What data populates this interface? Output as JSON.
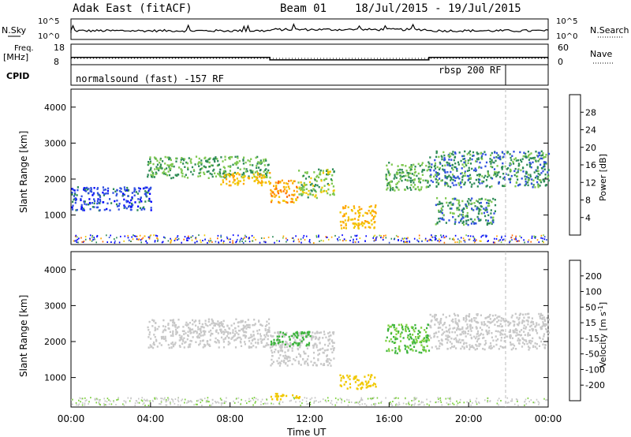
{
  "header": {
    "station": "Adak East (fitACF)",
    "beam": "Beam 01",
    "dates": "18/Jul/2015 - 19/Jul/2015"
  },
  "noise_panel": {
    "left_label": "N.Sky",
    "right_label": "N.Search",
    "y_ticks_left": [
      "10^5",
      "10^0"
    ],
    "y_ticks_right": [
      "10^5",
      "10^0"
    ]
  },
  "freq_panel": {
    "left_label_top": "Freq.",
    "left_label_unit": "[MHz]",
    "right_label": "Nave",
    "y_ticks_left": [
      "18",
      "8"
    ],
    "y_ticks_right": [
      "60",
      "0"
    ],
    "freq_steps": [
      {
        "t_start": 0,
        "t_end": 10,
        "freq": 12.0
      },
      {
        "t_start": 10,
        "t_end": 18,
        "freq": 10.3
      },
      {
        "t_start": 18,
        "t_end": 24,
        "freq": 12.0
      }
    ]
  },
  "cpid_panel": {
    "label": "CPID",
    "modes": [
      {
        "t_start": 0,
        "t_end": 21.85,
        "text": "normalsound (fast) -157 RF"
      },
      {
        "t_start": 21.85,
        "t_end": 24,
        "text": "rbsp 200 RF"
      }
    ]
  },
  "chart_data": [
    {
      "type": "heatmap",
      "title": "",
      "xlabel": "",
      "ylabel": "Slant Range [km]",
      "xlim": [
        0,
        24
      ],
      "ylim": [
        180,
        4500
      ],
      "y_ticks": [
        1000,
        2000,
        3000,
        4000
      ],
      "colorbar": {
        "label": "Power [dB]",
        "ticks": [
          "4",
          "8",
          "12",
          "16",
          "20",
          "24",
          "28"
        ],
        "colors": [
          "#0000ff",
          "#3050e0",
          "#2e8b57",
          "#7ec850",
          "#f0c800",
          "#ffa500",
          "#ff6a00",
          "#ff0000"
        ]
      },
      "regions": [
        {
          "t_start": 3.8,
          "t_end": 10.0,
          "r_min": 2050,
          "r_max": 2650,
          "value": 12
        },
        {
          "t_start": 7.5,
          "t_end": 10.0,
          "r_min": 1850,
          "r_max": 2200,
          "value": 20
        },
        {
          "t_start": 10.0,
          "t_end": 11.4,
          "r_min": 1350,
          "r_max": 2000,
          "value": 22
        },
        {
          "t_start": 11.4,
          "t_end": 13.2,
          "r_min": 1500,
          "r_max": 2300,
          "value": 14
        },
        {
          "t_start": 13.5,
          "t_end": 15.3,
          "r_min": 650,
          "r_max": 1300,
          "value": 20
        },
        {
          "t_start": 15.8,
          "t_end": 18.0,
          "r_min": 1700,
          "r_max": 2500,
          "value": 12
        },
        {
          "t_start": 18.0,
          "t_end": 24.0,
          "r_min": 1800,
          "r_max": 2800,
          "value": 10
        },
        {
          "t_start": 18.3,
          "t_end": 21.3,
          "r_min": 750,
          "r_max": 1500,
          "value": 10
        },
        {
          "t_start": 0.0,
          "t_end": 4.0,
          "r_min": 1150,
          "r_max": 1800,
          "value": 6
        }
      ]
    },
    {
      "type": "heatmap",
      "title": "",
      "xlabel": "Time UT",
      "ylabel": "Slant Range [km]",
      "xlim": [
        0,
        24
      ],
      "ylim": [
        180,
        4500
      ],
      "y_ticks": [
        1000,
        2000,
        3000,
        4000
      ],
      "x_ticks": [
        "00:00",
        "04:00",
        "08:00",
        "12:00",
        "16:00",
        "20:00",
        "00:00"
      ],
      "colorbar": {
        "label": "Velocity [m s^-1]",
        "ticks": [
          "200",
          "100",
          "50",
          "15",
          "-15",
          "-50",
          "-100",
          "-200"
        ],
        "colors": [
          "#1f3fbf",
          "#2e8b57",
          "#3cb43c",
          "#7ed040",
          "#c8c8c8",
          "#f0c800",
          "#ffa500",
          "#ff6a00",
          "#ff0000"
        ]
      },
      "regions": [
        {
          "t_start": 3.8,
          "t_end": 10.0,
          "r_min": 1850,
          "r_max": 2650,
          "value": 0
        },
        {
          "t_start": 10.0,
          "t_end": 13.2,
          "r_min": 1350,
          "r_max": 2300,
          "value": 0
        },
        {
          "t_start": 10.0,
          "t_end": 12.0,
          "r_min": 1900,
          "r_max": 2300,
          "value": 60
        },
        {
          "t_start": 13.5,
          "t_end": 15.3,
          "r_min": 700,
          "r_max": 1100,
          "value": -30
        },
        {
          "t_start": 15.8,
          "t_end": 18.0,
          "r_min": 1700,
          "r_max": 2500,
          "value": 30
        },
        {
          "t_start": 18.0,
          "t_end": 24.0,
          "r_min": 1800,
          "r_max": 2800,
          "value": 0
        },
        {
          "t_start": 10.0,
          "t_end": 11.5,
          "r_min": 400,
          "r_max": 600,
          "value": -30
        }
      ]
    }
  ]
}
